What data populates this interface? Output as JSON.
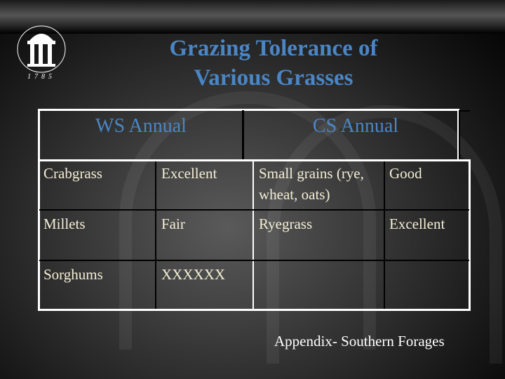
{
  "title_lines": [
    "Grazing Tolerance of",
    "Various Grasses"
  ],
  "logo": {
    "year": "1785"
  },
  "table": {
    "headers": [
      "WS Annual",
      "CS Annual"
    ],
    "rows": [
      [
        "Crabgrass",
        "Excellent",
        "Small grains (rye, wheat, oats)",
        "Good"
      ],
      [
        "Millets",
        "Fair",
        "Ryegrass",
        "Excellent"
      ],
      [
        "Sorghums",
        "XXXXXX",
        "",
        ""
      ]
    ]
  },
  "footer": "Appendix- Southern Forages",
  "colors": {
    "title": "#4a86c5",
    "cell_text": "#f3efd6"
  }
}
